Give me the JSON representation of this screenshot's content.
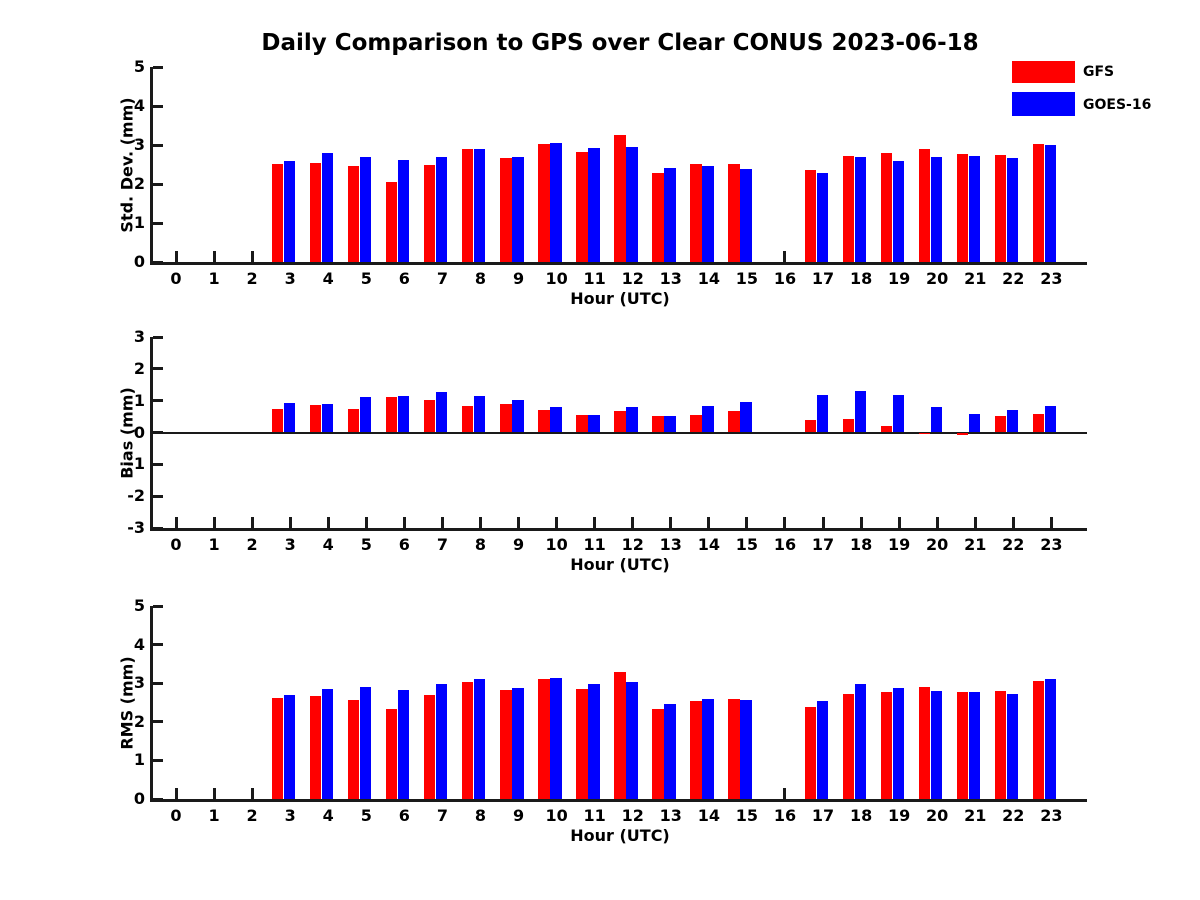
{
  "title": "Daily Comparison to GPS over Clear CONUS 2023-06-18",
  "legend": {
    "position": "top-right",
    "items": [
      {
        "label": "GFS",
        "color": "#ff0000"
      },
      {
        "label": "GOES-16",
        "color": "#0000ff"
      }
    ]
  },
  "colors": {
    "gfs": "#ff0000",
    "goes16": "#0000ff",
    "axis": "#1a1a1a"
  },
  "chart_data": [
    {
      "type": "bar",
      "panel": "std-dev",
      "xlabel": "Hour (UTC)",
      "ylabel": "Std. Dev. (mm)",
      "ylim": [
        0,
        5
      ],
      "yticks": [
        0,
        1,
        2,
        3,
        4,
        5
      ],
      "grid": false,
      "categories": [
        0,
        1,
        2,
        3,
        4,
        5,
        6,
        7,
        8,
        9,
        10,
        11,
        12,
        13,
        14,
        15,
        16,
        17,
        18,
        19,
        20,
        21,
        22,
        23
      ],
      "series": [
        {
          "name": "GFS",
          "color": "#ff0000",
          "values": [
            null,
            null,
            null,
            2.52,
            2.55,
            2.45,
            2.06,
            2.49,
            2.91,
            2.67,
            3.03,
            2.81,
            3.26,
            2.27,
            2.51,
            2.51,
            null,
            2.36,
            2.71,
            2.79,
            2.89,
            2.78,
            2.74,
            3.03
          ]
        },
        {
          "name": "GOES-16",
          "color": "#0000ff",
          "values": [
            null,
            null,
            null,
            2.58,
            2.79,
            2.68,
            2.62,
            2.7,
            2.89,
            2.69,
            3.06,
            2.93,
            2.94,
            2.4,
            2.46,
            2.39,
            null,
            2.27,
            2.68,
            2.6,
            2.68,
            2.73,
            2.66,
            3.0
          ]
        }
      ]
    },
    {
      "type": "bar",
      "panel": "bias",
      "xlabel": "Hour (UTC)",
      "ylabel": "Bias (mm)",
      "ylim": [
        -3,
        3
      ],
      "yticks": [
        -3,
        -2,
        -1,
        0,
        1,
        2,
        3
      ],
      "zero_line": true,
      "grid": false,
      "categories": [
        0,
        1,
        2,
        3,
        4,
        5,
        6,
        7,
        8,
        9,
        10,
        11,
        12,
        13,
        14,
        15,
        16,
        17,
        18,
        19,
        20,
        21,
        22,
        23
      ],
      "series": [
        {
          "name": "GFS",
          "color": "#ff0000",
          "values": [
            null,
            null,
            null,
            0.73,
            0.85,
            0.73,
            1.11,
            1.02,
            0.83,
            0.91,
            0.71,
            0.54,
            0.66,
            0.52,
            0.56,
            0.68,
            null,
            0.39,
            0.41,
            0.21,
            -0.05,
            -0.09,
            0.53,
            0.58
          ]
        },
        {
          "name": "GOES-16",
          "color": "#0000ff",
          "values": [
            null,
            null,
            null,
            0.92,
            0.89,
            1.1,
            1.14,
            1.27,
            1.15,
            1.03,
            0.81,
            0.56,
            0.79,
            0.52,
            0.83,
            0.95,
            null,
            1.18,
            1.29,
            1.18,
            0.79,
            0.58,
            0.7,
            0.83
          ]
        }
      ]
    },
    {
      "type": "bar",
      "panel": "rms",
      "xlabel": "Hour (UTC)",
      "ylabel": "RMS (mm)",
      "ylim": [
        0,
        5
      ],
      "yticks": [
        0,
        1,
        2,
        3,
        4,
        5
      ],
      "grid": false,
      "categories": [
        0,
        1,
        2,
        3,
        4,
        5,
        6,
        7,
        8,
        9,
        10,
        11,
        12,
        13,
        14,
        15,
        16,
        17,
        18,
        19,
        20,
        21,
        22,
        23
      ],
      "series": [
        {
          "name": "GFS",
          "color": "#ff0000",
          "values": [
            null,
            null,
            null,
            2.62,
            2.66,
            2.56,
            2.34,
            2.69,
            3.02,
            2.83,
            3.1,
            2.84,
            3.28,
            2.33,
            2.53,
            2.58,
            null,
            2.38,
            2.72,
            2.77,
            2.9,
            2.77,
            2.79,
            3.06
          ]
        },
        {
          "name": "GOES-16",
          "color": "#0000ff",
          "values": [
            null,
            null,
            null,
            2.69,
            2.86,
            2.9,
            2.82,
            2.97,
            3.1,
            2.87,
            3.13,
            2.97,
            3.02,
            2.46,
            2.59,
            2.56,
            null,
            2.53,
            2.97,
            2.87,
            2.79,
            2.77,
            2.72,
            3.1
          ]
        }
      ]
    }
  ]
}
